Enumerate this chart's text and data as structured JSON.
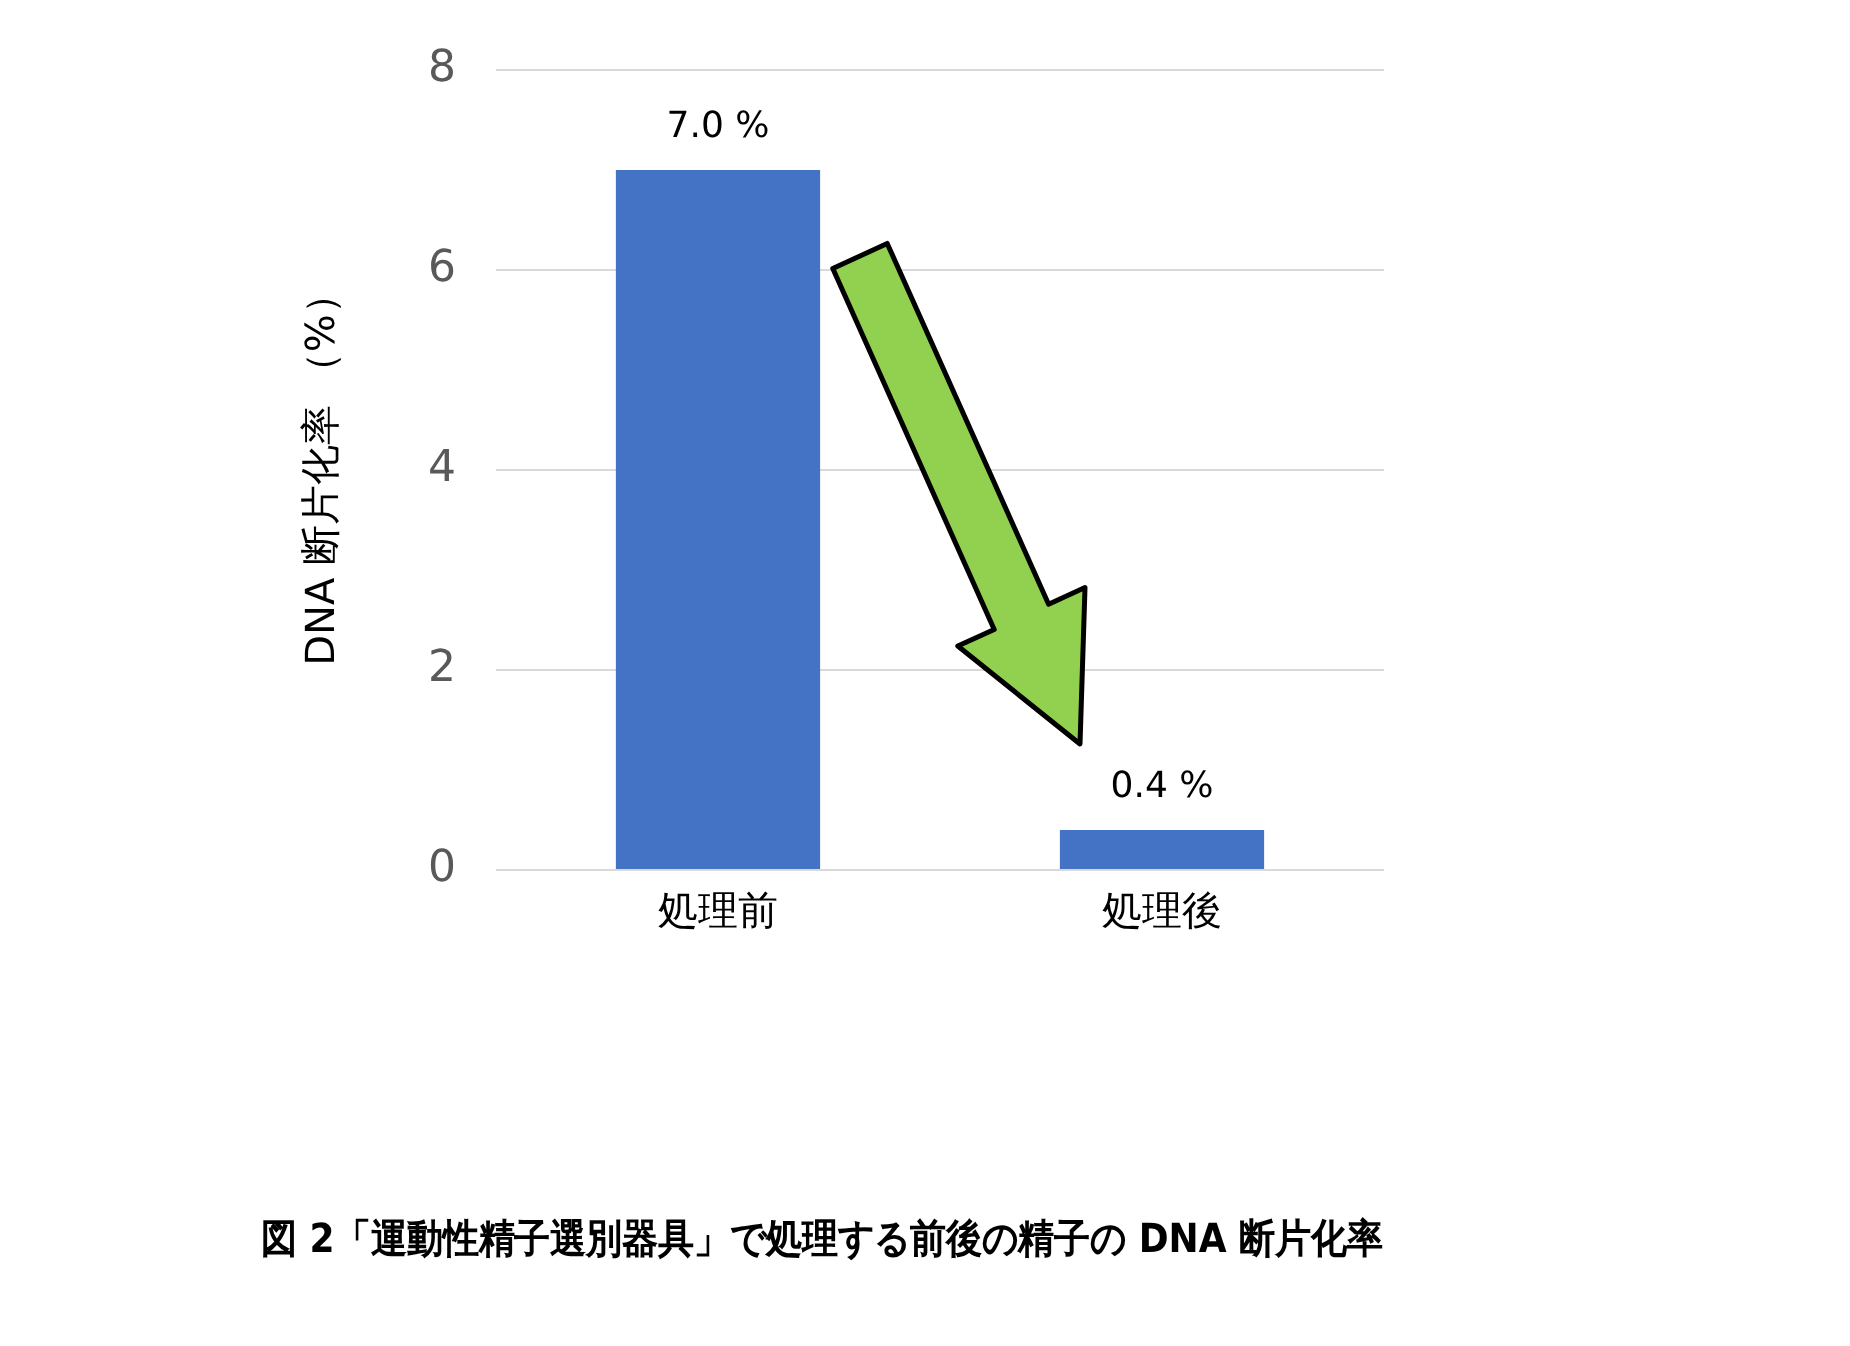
{
  "chart_data": {
    "type": "bar",
    "title": "図 2「運動性精子選別器具」で処理する前後の精子の DNA 断片化率",
    "ylabel": "DNA 断片化率 （%）",
    "categories": [
      "処理前",
      "処理後"
    ],
    "values": [
      7.0,
      0.4
    ],
    "color": "#4472c4",
    "value_labels": [
      "7.0 %",
      "0.4 %"
    ],
    "ylim": [
      0,
      8
    ],
    "yticks": [
      0,
      2,
      4,
      6,
      8
    ],
    "grid": "y",
    "legend": false
  }
}
